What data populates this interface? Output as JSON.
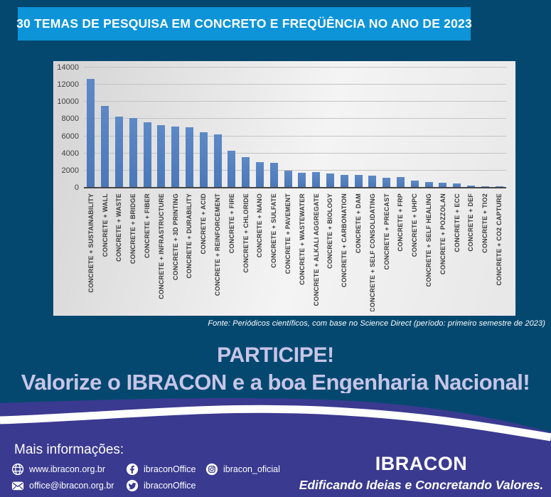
{
  "banner": {
    "title": "30 TEMAS DE PESQUISA EM CONCRETO E FREQÜÊNCIA NO ANO DE 2023"
  },
  "chart_data": {
    "type": "bar",
    "title": "",
    "xlabel": "",
    "ylabel": "",
    "ylim": [
      0,
      14000
    ],
    "yticks": [
      0,
      2000,
      4000,
      6000,
      8000,
      10000,
      12000,
      14000
    ],
    "grid": true,
    "legend": false,
    "bar_color": "#4E7DBE",
    "categories": [
      "CONCRETE + SUSTAINABILITY",
      "CONCRETE + WALL",
      "CONCRETE + WASTE",
      "CONCRETE + BRIDGE",
      "CONCRETE + FIBER",
      "CONCRETE + INFRASTRUCTURE",
      "CONCRETE + 3D PRINTING",
      "CONCRETE + DURABILITY",
      "CONCRETE + ACID",
      "CONCRETE + REINFORCEMENT",
      "CONCRETE + FIRE",
      "CONCRETE + CHLORIDE",
      "CONCRETE + NANO",
      "CONCRETE + SULFATE",
      "CONCRETE + PAVEMENT",
      "CONCRETE + WASTEWATER",
      "CONCRETE + ALKALI AGGREGATE",
      "CONCRETE + BIOLOGY",
      "CONCRETE + CARBONATION",
      "CONCRETE + DAM",
      "CONCRETE + SELF CONSOLIDATING",
      "CONCRETE + PRECAST",
      "CONCRETE + FRP",
      "CONCRETE + UHPC",
      "CONCRETE + SELF HEALING",
      "CONCRETE + POZZOLAN",
      "CONCRETE + ECC",
      "CONCRETE + DEF",
      "CONCRETE + TIO2",
      "CONCRETE + CO2 CAPTURE"
    ],
    "values": [
      12700,
      9550,
      8300,
      8100,
      7600,
      7250,
      7150,
      7000,
      6500,
      6250,
      4300,
      3550,
      2950,
      2900,
      1950,
      1700,
      1850,
      1650,
      1450,
      1450,
      1400,
      1200,
      1250,
      850,
      650,
      550,
      500,
      250,
      200,
      150
    ]
  },
  "source_note": "Fonte: Periódicos científicos, com base no Science Direct (período: primeiro semestre de 2023)",
  "cta": {
    "line1": "PARTICIPE!",
    "line2": "Valorize o IBRACON e a boa Engenharia Nacional!"
  },
  "footer": {
    "more_info_label": "Mais informações:",
    "website": "www.ibracon.org.br",
    "email": "office@ibracon.org.br",
    "facebook_handle": "ibraconOffice",
    "twitter_handle": "ibraconOffice",
    "instagram_handle": "ibracon_oficial",
    "brand": "IBRACON",
    "tagline": "Edificando Ideias e Concretando Valores."
  },
  "colors": {
    "background": "#05486F",
    "banner": "#0D94D8",
    "bar": "#4E7DBE",
    "footer_purple": "#3A3A90",
    "cta_text": "#C7C5E7",
    "white": "#FFFFFF"
  }
}
